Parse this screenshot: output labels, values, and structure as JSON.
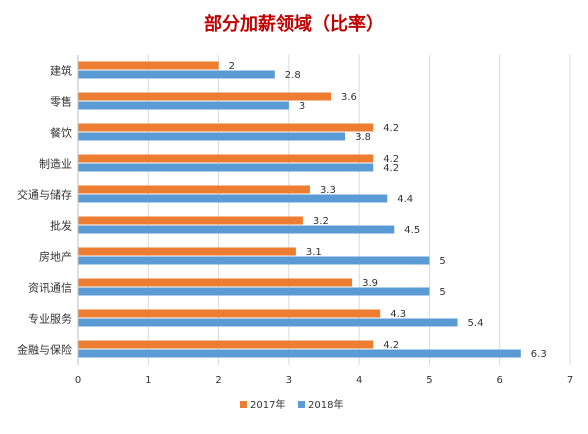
{
  "chart_data": {
    "type": "bar",
    "orientation": "horizontal",
    "title": "部分加薪领域（比率）",
    "categories": [
      "建筑",
      "零售",
      "餐饮",
      "制造业",
      "交通与储存",
      "批发",
      "房地产",
      "资讯通信",
      "专业服务",
      "金融与保险"
    ],
    "series": [
      {
        "name": "2017年",
        "values": [
          2,
          3.6,
          4.2,
          4.2,
          3.3,
          3.2,
          3.1,
          3.9,
          4.3,
          4.2
        ]
      },
      {
        "name": "2018年",
        "values": [
          2.8,
          3,
          3.8,
          4.2,
          4.4,
          4.5,
          5,
          5,
          5.4,
          6.3
        ]
      }
    ],
    "xlim": [
      0,
      7
    ],
    "xticks": [
      0,
      1,
      2,
      3,
      4,
      5,
      6,
      7
    ],
    "xlabel": "",
    "ylabel": "",
    "grid": "vertical",
    "legend": "bottom-center"
  },
  "colors": {
    "series_2017": "#ED7D31",
    "series_2018": "#5B9BD5",
    "title": "#C00000",
    "text": "#333333",
    "grid": "#D9D9D9",
    "axis": "#BFBFBF"
  }
}
